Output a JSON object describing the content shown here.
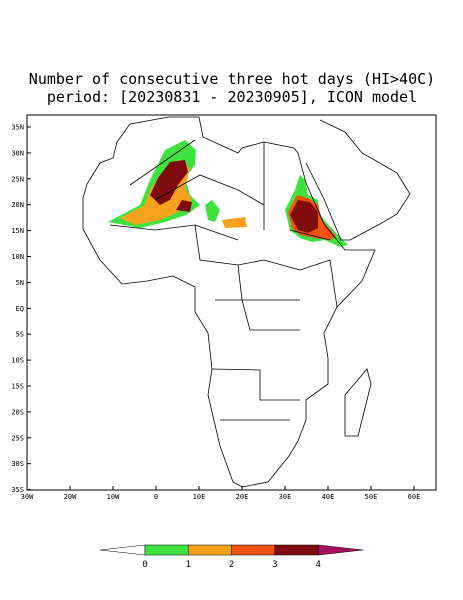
{
  "title": [
    "Number of consecutive three hot days (HI>40C)",
    "period: [20230831 - 20230905], ICON model"
  ],
  "map": {
    "lat_labels": [
      "35N",
      "30N",
      "25N",
      "20N",
      "15N",
      "10N",
      "5N",
      "EQ",
      "5S",
      "10S",
      "15S",
      "20S",
      "25S",
      "30S",
      "35S"
    ],
    "lon_labels": [
      "30W",
      "20W",
      "10W",
      "0",
      "10E",
      "20E",
      "30E",
      "40E",
      "50E",
      "60E"
    ]
  },
  "legend": {
    "labels": [
      "0",
      "1",
      "2",
      "3",
      "4"
    ],
    "colors": [
      "#ffffff",
      "#3ee23e",
      "#f6a21c",
      "#f2520f",
      "#7e0c0c",
      "#a5105e"
    ]
  }
}
